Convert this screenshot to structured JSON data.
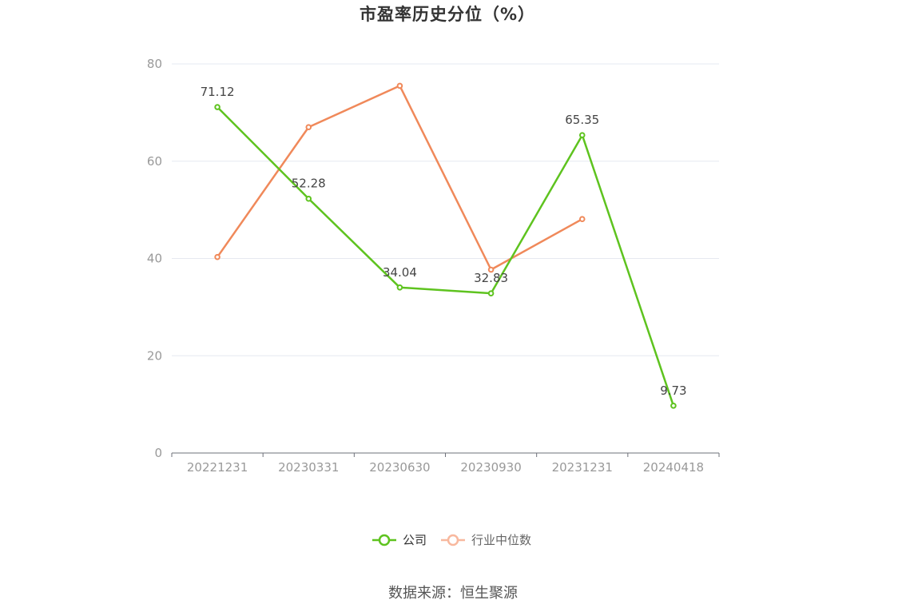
{
  "chart_data": {
    "type": "line",
    "title": "市盈率历史分位（%）",
    "categories": [
      "20221231",
      "20230331",
      "20230630",
      "20230930",
      "20231231",
      "20240418"
    ],
    "ylim": [
      0,
      80
    ],
    "yticks": [
      0,
      20,
      40,
      60,
      80
    ],
    "grid": true,
    "legend_position": "bottom",
    "series": [
      {
        "name": "公司",
        "color": "#5ec31f",
        "values": [
          71.12,
          52.28,
          34.04,
          32.83,
          65.35,
          9.73
        ],
        "labels": [
          "71.12",
          "52.28",
          "34.04",
          "32.83",
          "65.35",
          "9.73"
        ]
      },
      {
        "name": "行业中位数",
        "color": "#f0895a",
        "legend_color": "#f8b89e",
        "values": [
          40.3,
          67.0,
          75.5,
          37.7,
          48.1,
          null
        ]
      }
    ]
  },
  "source": "数据来源：恒生聚源"
}
